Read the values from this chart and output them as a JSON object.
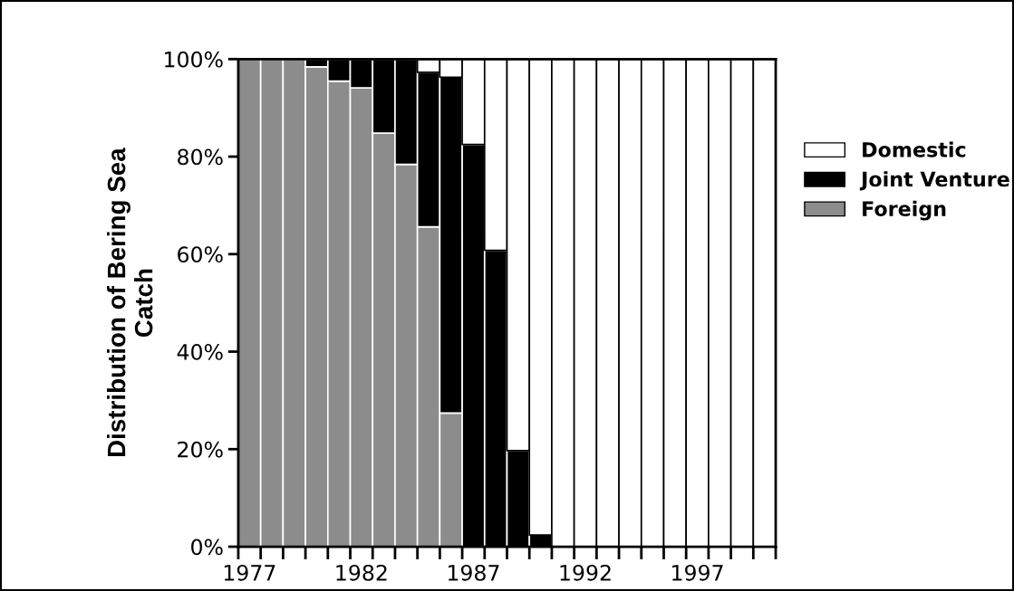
{
  "chart_data": {
    "type": "bar",
    "stacked": true,
    "ylabel": "Distribution of Bering Sea\nCatch",
    "categories": [
      "1977",
      null,
      null,
      null,
      null,
      "1982",
      null,
      null,
      null,
      null,
      "1987",
      null,
      null,
      null,
      null,
      "1992",
      null,
      null,
      null,
      null,
      "1997",
      null,
      null,
      null
    ],
    "series": [
      {
        "name": "Foreign",
        "color": "#8c8c8c",
        "values": [
          100,
          100,
          100,
          98.4,
          95.5,
          94.1,
          84.8,
          78.4,
          65.6,
          27.4,
          0,
          0,
          0,
          0,
          0,
          0,
          0,
          0,
          0,
          0,
          0,
          0,
          0,
          0
        ]
      },
      {
        "name": "Joint Venture",
        "color": "#000000",
        "values": [
          null,
          null,
          null,
          1.6,
          4.5,
          5.9,
          15.2,
          21.6,
          31.7,
          68.9,
          82.5,
          60.8,
          19.7,
          2.4,
          0,
          0,
          0,
          0,
          0,
          0,
          0,
          0,
          0,
          0
        ]
      },
      {
        "name": "Domestic",
        "color": "#ffffff",
        "values": [
          0,
          0,
          0,
          0,
          0,
          0,
          0,
          0,
          2.7,
          3.7,
          17.5,
          39.2,
          80.3,
          97.6,
          100,
          100,
          100,
          100,
          100,
          100,
          100,
          100,
          100,
          100
        ]
      }
    ],
    "ylim": [
      0,
      100
    ],
    "yticks": [
      {
        "value": 0,
        "label": "0%"
      },
      {
        "value": 20,
        "label": "20%"
      },
      {
        "value": 40,
        "label": "40%"
      },
      {
        "value": 60,
        "label": "60%"
      },
      {
        "value": 80,
        "label": "80%"
      },
      {
        "value": 100,
        "label": "100%"
      }
    ],
    "grid": false,
    "legend": "right"
  }
}
